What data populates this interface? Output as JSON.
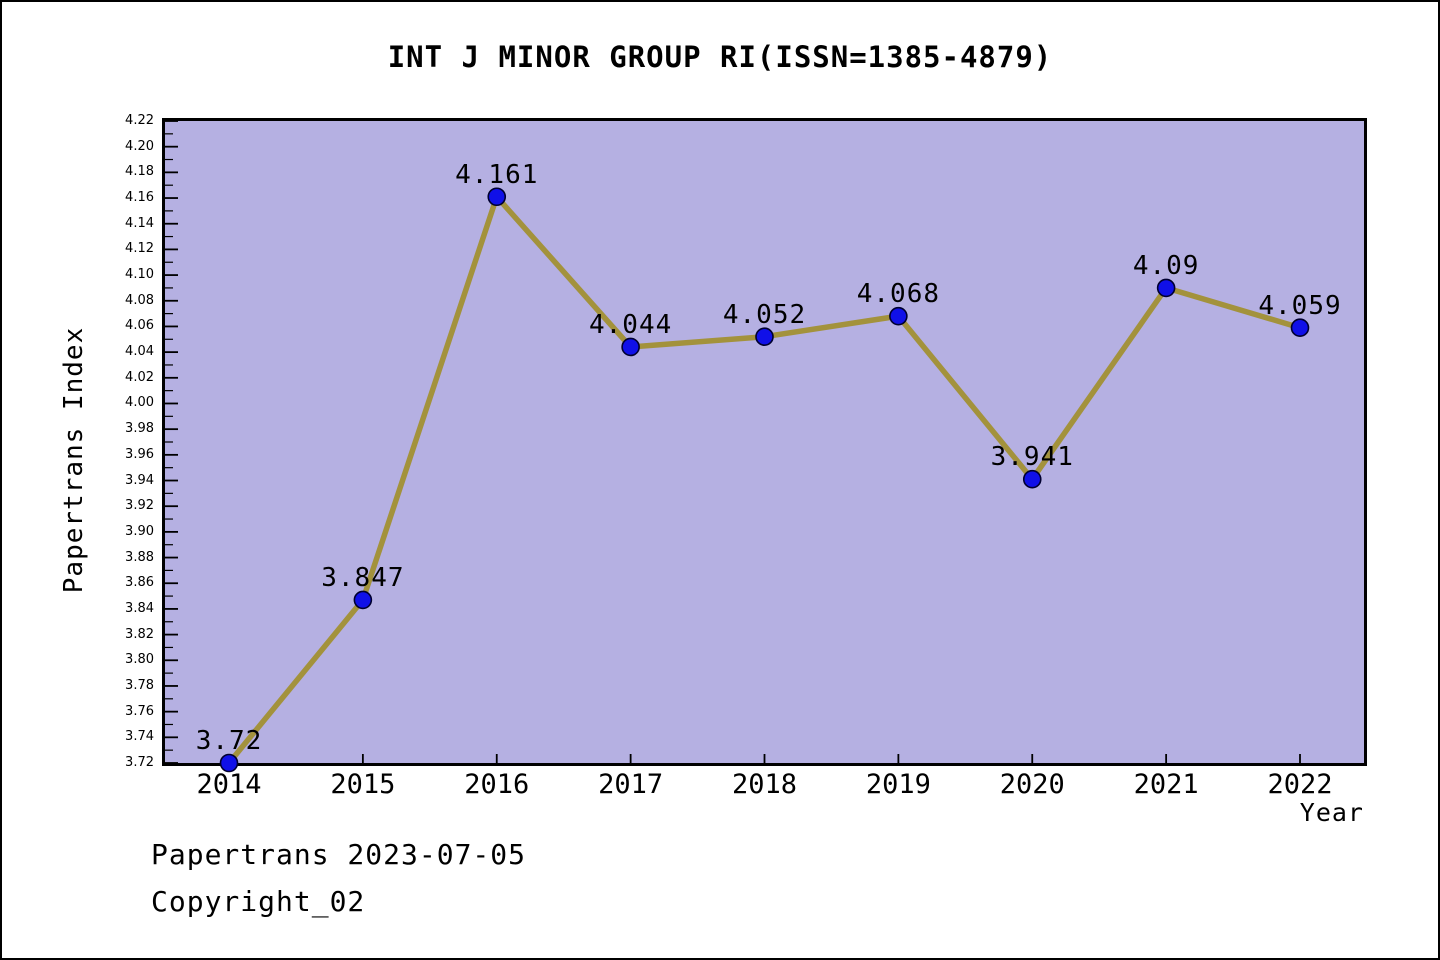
{
  "title": "INT J MINOR GROUP RI(ISSN=1385-4879)",
  "footer": {
    "line1": "Papertrans 2023-07-05",
    "line2": "Copyright_02"
  },
  "chart_data": {
    "type": "line",
    "title": "INT J MINOR GROUP RI(ISSN=1385-4879)",
    "xlabel": "Year",
    "ylabel": "Papertrans Index",
    "x": [
      "2014",
      "2015",
      "2016",
      "2017",
      "2018",
      "2019",
      "2020",
      "2021",
      "2022"
    ],
    "values": [
      3.72,
      3.847,
      4.161,
      4.044,
      4.052,
      4.068,
      3.941,
      4.09,
      4.059
    ],
    "point_labels": [
      "3.72",
      "3.847",
      "4.161",
      "4.044",
      "4.052",
      "4.068",
      "3.941",
      "4.09",
      "4.059"
    ],
    "ylim": [
      3.72,
      4.22
    ],
    "y_tick_step": 0.02,
    "y_minor_step": 0.01,
    "y_tick_labels": [
      "3.72",
      "3.74",
      "3.76",
      "3.78",
      "3.80",
      "3.82",
      "3.84",
      "3.86",
      "3.88",
      "3.90",
      "3.92",
      "3.94",
      "3.96",
      "3.98",
      "4.00",
      "4.02",
      "4.04",
      "4.06",
      "4.08",
      "4.10",
      "4.12",
      "4.14",
      "4.16",
      "4.18",
      "4.20",
      "4.22"
    ],
    "grid": false,
    "legend": null,
    "colors": {
      "line": "#a3923c",
      "marker": "#1010e8",
      "marker_edge": "#000030",
      "plot_bg": "#b5b0e2",
      "axis": "#000000",
      "text": "#000000"
    }
  }
}
